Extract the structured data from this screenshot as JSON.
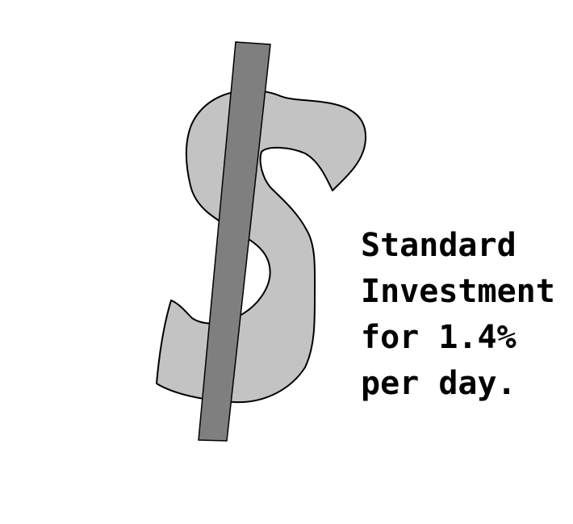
{
  "caption": {
    "lines": [
      "Standard",
      "Investment",
      "for 1.4%",
      "per day."
    ]
  },
  "graphic": {
    "icon": "dollar-sign-icon",
    "fill_color": "#c3c3c3",
    "bar_color": "#7f7f7f",
    "outline_color": "#000000"
  }
}
